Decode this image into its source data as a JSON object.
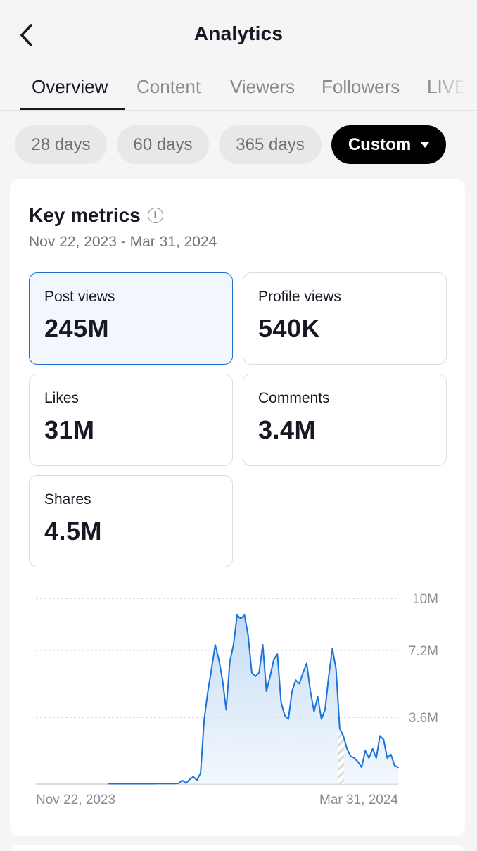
{
  "header": {
    "title": "Analytics",
    "back_icon": "chevron-left-icon"
  },
  "tabs": [
    {
      "label": "Overview",
      "active": true
    },
    {
      "label": "Content",
      "active": false
    },
    {
      "label": "Viewers",
      "active": false
    },
    {
      "label": "Followers",
      "active": false
    },
    {
      "label": "LIVE",
      "active": false
    }
  ],
  "ranges": [
    {
      "label": "28 days",
      "active": false
    },
    {
      "label": "60 days",
      "active": false
    },
    {
      "label": "365 days",
      "active": false
    },
    {
      "label": "Custom",
      "active": true
    }
  ],
  "key_metrics": {
    "title": "Key metrics",
    "date_range": "Nov 22, 2023 - Mar 31, 2024",
    "metrics": [
      {
        "label": "Post views",
        "value": "245M",
        "selected": true
      },
      {
        "label": "Profile views",
        "value": "540K",
        "selected": false
      },
      {
        "label": "Likes",
        "value": "31M",
        "selected": false
      },
      {
        "label": "Comments",
        "value": "3.4M",
        "selected": false
      },
      {
        "label": "Shares",
        "value": "4.5M",
        "selected": false
      }
    ]
  },
  "colors": {
    "accent": "#1f6fd1",
    "line": "#1a73d9",
    "selected_bg": "#f2f7fd"
  },
  "chart_data": {
    "type": "area",
    "series": [
      {
        "values": [
          0.02,
          0.02,
          0.02,
          0.02,
          0.02,
          0.02,
          0.02,
          0.02,
          0.02,
          0.02,
          0.02,
          0.02,
          0.02,
          0.02,
          0.02,
          0.02,
          0.02,
          0.02,
          0.02,
          0.02,
          0.02,
          0.02,
          0.02,
          0.02,
          0.02,
          0.02,
          0.02,
          0.02,
          0.02,
          0.02,
          0.02,
          0.02,
          0.02,
          0.03,
          0.03,
          0.03,
          0.03,
          0.03,
          0.03,
          0.04,
          0.2,
          0.05,
          0.25,
          0.4,
          0.2,
          0.6,
          3.5,
          5.0,
          6.2,
          7.5,
          6.7,
          5.6,
          4.0,
          6.6,
          7.5,
          9.1,
          8.9,
          9.1,
          8.0,
          6.0,
          5.8,
          6.0,
          7.5,
          5.0,
          5.8,
          6.7,
          7.0,
          4.4,
          3.7,
          3.5,
          5.0,
          5.6,
          5.4,
          6.0,
          6.5,
          5.0,
          3.9,
          4.7,
          3.5,
          4.0,
          5.8,
          7.3,
          6.2,
          3.0,
          2.6,
          1.9,
          1.5,
          1.4,
          1.2,
          0.9,
          1.8,
          1.4,
          1.9,
          1.4,
          2.6,
          2.4,
          1.4,
          1.6,
          1.0,
          0.9
        ]
      }
    ],
    "x_range": [
      "Nov 22, 2023",
      "Mar 31, 2024"
    ],
    "x_ticks": [
      "Nov 22, 2023",
      "Mar 31, 2024"
    ],
    "y_ticks": [
      "10M",
      "7.2M",
      "3.6M"
    ],
    "y_tick_values": [
      10,
      7.2,
      3.6
    ],
    "ylim": [
      0,
      10
    ],
    "units": "M",
    "data_starts_at_index": 20,
    "partial_from_index": 83,
    "grid": true
  }
}
